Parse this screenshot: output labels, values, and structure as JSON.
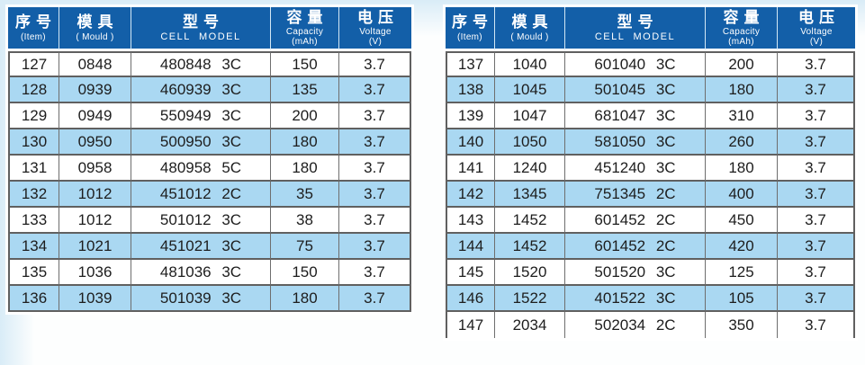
{
  "colors": {
    "header_bg": "#135fa8",
    "header_text": "#ffffff",
    "header_separator": "#d3e8f5",
    "row_alt_bg": "#aad8f2",
    "border": "#606060",
    "border_thin": "#6e6e6e",
    "text": "#1d1d1d",
    "page_bg_tint": "#d9ecf7"
  },
  "columns": [
    {
      "zh": "序号",
      "en": "(Item)"
    },
    {
      "zh": "模具",
      "en": "( Mould )"
    },
    {
      "zh": "型号",
      "en": "CELL MODEL"
    },
    {
      "zh": "容量",
      "en": "Capacity",
      "en2": "(mAh)"
    },
    {
      "zh": "电压",
      "en": "Voltage",
      "en2": "(V)"
    }
  ],
  "tables": [
    {
      "rows": [
        [
          "127",
          "0848",
          "480848 3C",
          "150",
          "3.7"
        ],
        [
          "128",
          "0939",
          "460939 3C",
          "135",
          "3.7"
        ],
        [
          "129",
          "0949",
          "550949 3C",
          "200",
          "3.7"
        ],
        [
          "130",
          "0950",
          "500950 3C",
          "180",
          "3.7"
        ],
        [
          "131",
          "0958",
          "480958 5C",
          "180",
          "3.7"
        ],
        [
          "132",
          "1012",
          "451012 2C",
          "35",
          "3.7"
        ],
        [
          "133",
          "1012",
          "501012 3C",
          "38",
          "3.7"
        ],
        [
          "134",
          "1021",
          "451021 3C",
          "75",
          "3.7"
        ],
        [
          "135",
          "1036",
          "481036 3C",
          "150",
          "3.7"
        ],
        [
          "136",
          "1039",
          "501039 3C",
          "180",
          "3.7"
        ]
      ]
    },
    {
      "rows": [
        [
          "137",
          "1040",
          "601040 3C",
          "200",
          "3.7"
        ],
        [
          "138",
          "1045",
          "501045 3C",
          "180",
          "3.7"
        ],
        [
          "139",
          "1047",
          "681047 3C",
          "310",
          "3.7"
        ],
        [
          "140",
          "1050",
          "581050 3C",
          "260",
          "3.7"
        ],
        [
          "141",
          "1240",
          "451240 3C",
          "180",
          "3.7"
        ],
        [
          "142",
          "1345",
          "751345 2C",
          "400",
          "3.7"
        ],
        [
          "143",
          "1452",
          "601452 2C",
          "450",
          "3.7"
        ],
        [
          "144",
          "1452",
          "601452 2C",
          "420",
          "3.7"
        ],
        [
          "145",
          "1520",
          "501520 3C",
          "125",
          "3.7"
        ],
        [
          "146",
          "1522",
          "401522 3C",
          "105",
          "3.7"
        ],
        [
          "147",
          "2034",
          "502034 2C",
          "350",
          "3.7"
        ]
      ]
    }
  ]
}
